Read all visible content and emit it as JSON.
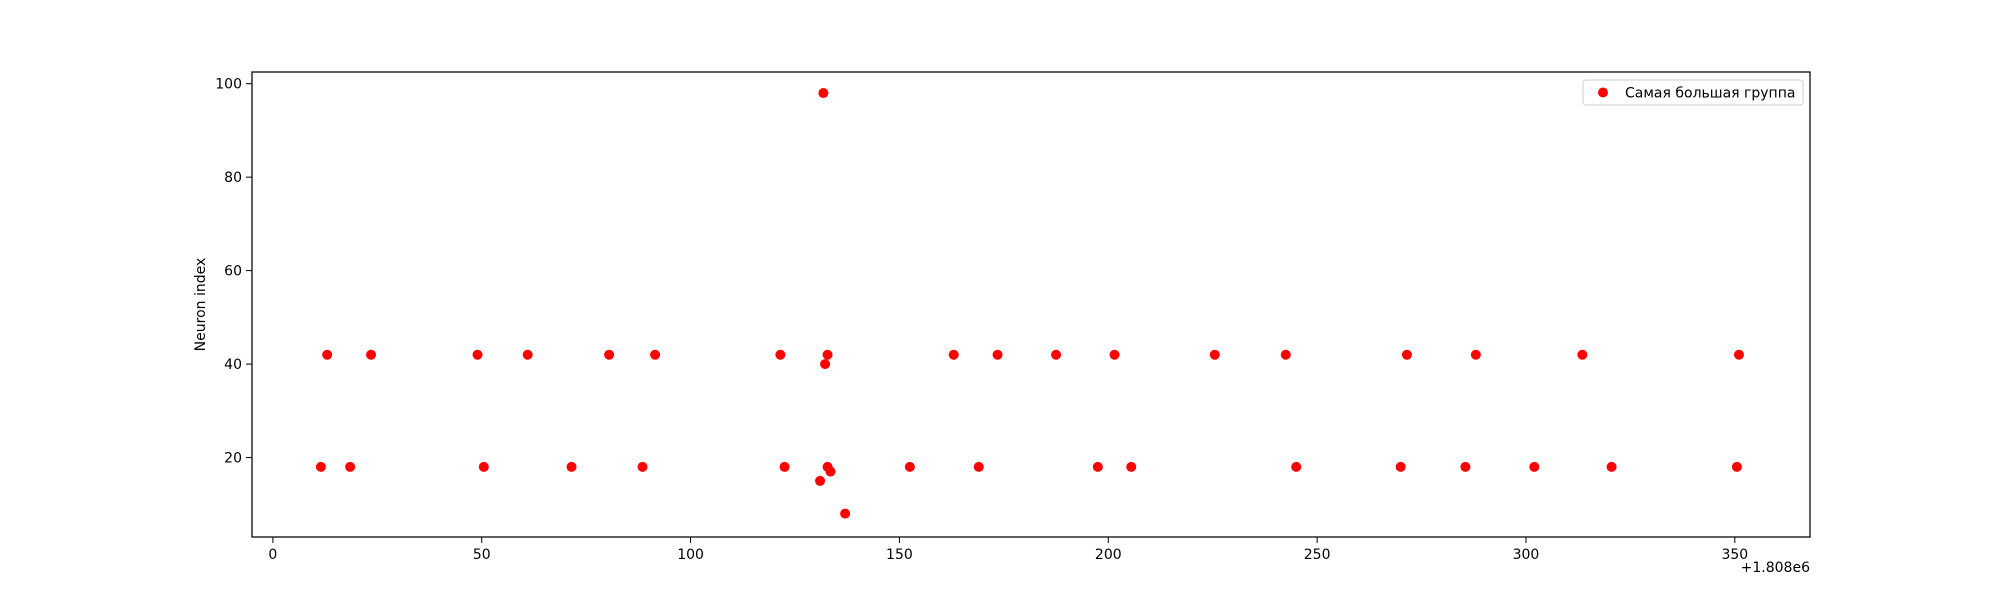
{
  "chart_data": {
    "type": "scatter",
    "title": "",
    "xlabel": "",
    "ylabel": "Neuron index",
    "x_offset_label": "+1.808e6",
    "xlim": [
      -5,
      368
    ],
    "ylim": [
      3,
      102.5
    ],
    "xticks": [
      0,
      50,
      100,
      150,
      200,
      250,
      300,
      350
    ],
    "yticks": [
      20,
      40,
      60,
      80,
      100
    ],
    "grid": false,
    "legend_position": "top-right",
    "series": [
      {
        "name": "Самая большая группа",
        "color": "#ff0000",
        "points": [
          {
            "x": 11.5,
            "y": 18
          },
          {
            "x": 13.0,
            "y": 42
          },
          {
            "x": 18.5,
            "y": 18
          },
          {
            "x": 23.5,
            "y": 42
          },
          {
            "x": 49.0,
            "y": 42
          },
          {
            "x": 50.5,
            "y": 18
          },
          {
            "x": 61.0,
            "y": 42
          },
          {
            "x": 71.5,
            "y": 18
          },
          {
            "x": 80.5,
            "y": 42
          },
          {
            "x": 88.5,
            "y": 18
          },
          {
            "x": 91.5,
            "y": 42
          },
          {
            "x": 121.5,
            "y": 42
          },
          {
            "x": 122.5,
            "y": 18
          },
          {
            "x": 131.0,
            "y": 15
          },
          {
            "x": 131.8,
            "y": 98
          },
          {
            "x": 132.2,
            "y": 40
          },
          {
            "x": 132.8,
            "y": 42
          },
          {
            "x": 132.8,
            "y": 18
          },
          {
            "x": 133.5,
            "y": 17
          },
          {
            "x": 137.0,
            "y": 8
          },
          {
            "x": 152.5,
            "y": 18
          },
          {
            "x": 163.0,
            "y": 42
          },
          {
            "x": 169.0,
            "y": 18
          },
          {
            "x": 173.5,
            "y": 42
          },
          {
            "x": 187.5,
            "y": 42
          },
          {
            "x": 197.5,
            "y": 18
          },
          {
            "x": 201.5,
            "y": 42
          },
          {
            "x": 205.5,
            "y": 18
          },
          {
            "x": 225.5,
            "y": 42
          },
          {
            "x": 242.5,
            "y": 42
          },
          {
            "x": 245.0,
            "y": 18
          },
          {
            "x": 270.0,
            "y": 18
          },
          {
            "x": 271.5,
            "y": 42
          },
          {
            "x": 285.5,
            "y": 18
          },
          {
            "x": 288.0,
            "y": 42
          },
          {
            "x": 302.0,
            "y": 18
          },
          {
            "x": 313.5,
            "y": 42
          },
          {
            "x": 320.5,
            "y": 18
          },
          {
            "x": 350.5,
            "y": 18
          },
          {
            "x": 351.0,
            "y": 42
          }
        ]
      }
    ]
  }
}
